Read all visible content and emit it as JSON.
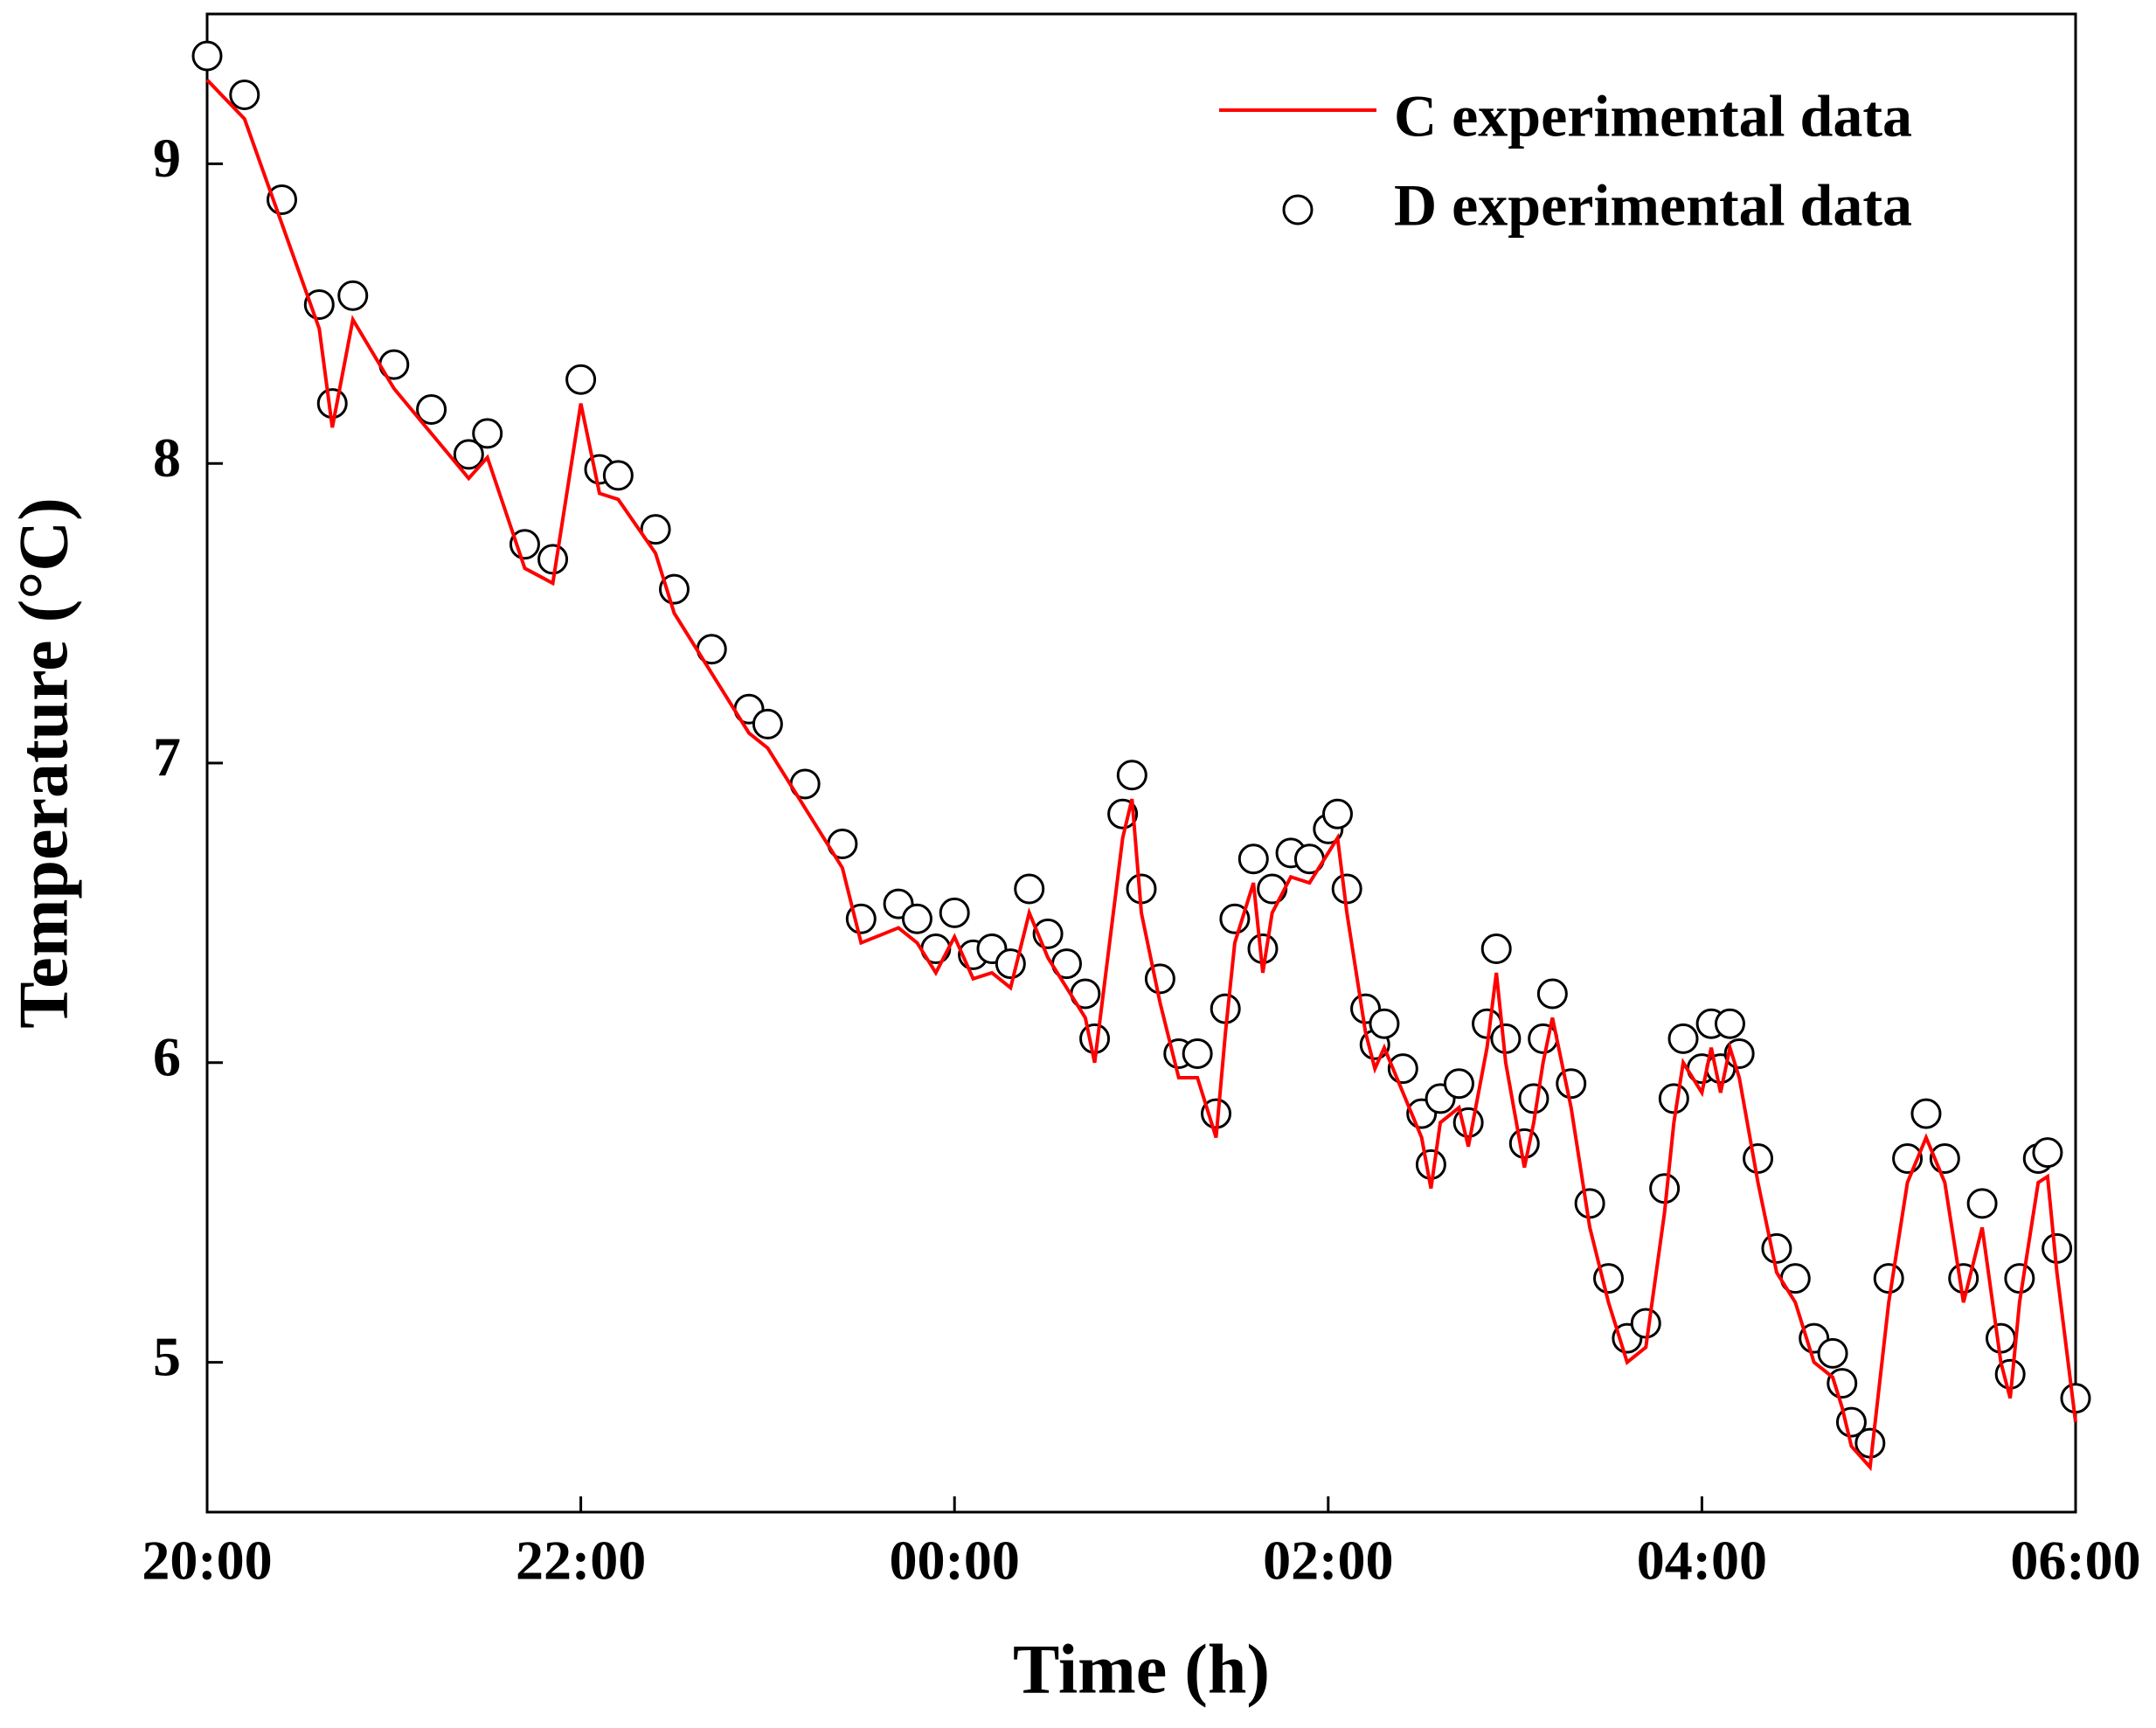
{
  "chart_data": {
    "type": "line",
    "xlabel": "Time (h)",
    "ylabel": "Temperature (°C)",
    "xlim": [
      0,
      10
    ],
    "xticks": [
      {
        "value": 0,
        "label": "20:00"
      },
      {
        "value": 2,
        "label": "22:00"
      },
      {
        "value": 4,
        "label": "00:00"
      },
      {
        "value": 6,
        "label": "02:00"
      },
      {
        "value": 8,
        "label": "04:00"
      },
      {
        "value": 10,
        "label": "06:00"
      }
    ],
    "ylim": [
      4.5,
      9.5
    ],
    "yticks": [
      5,
      6,
      7,
      8,
      9
    ],
    "grid": false,
    "legend": "upper right",
    "series": [
      {
        "name": "C experimental data",
        "color": "#ff0000",
        "type": "line",
        "x": [
          0,
          0.2,
          0.4,
          0.6,
          0.67,
          0.78,
          1.0,
          1.2,
          1.4,
          1.5,
          1.7,
          1.85,
          2.0,
          2.1,
          2.2,
          2.4,
          2.5,
          2.7,
          2.9,
          3.0,
          3.2,
          3.4,
          3.5,
          3.7,
          3.8,
          3.9,
          4.0,
          4.1,
          4.2,
          4.3,
          4.4,
          4.5,
          4.6,
          4.7,
          4.75,
          4.9,
          4.95,
          5.0,
          5.1,
          5.2,
          5.3,
          5.4,
          5.45,
          5.5,
          5.6,
          5.65,
          5.7,
          5.8,
          5.9,
          6.0,
          6.05,
          6.1,
          6.2,
          6.25,
          6.3,
          6.4,
          6.5,
          6.55,
          6.6,
          6.7,
          6.75,
          6.85,
          6.9,
          6.95,
          7.05,
          7.1,
          7.15,
          7.2,
          7.3,
          7.4,
          7.5,
          7.6,
          7.7,
          7.8,
          7.85,
          7.9,
          8.0,
          8.05,
          8.1,
          8.15,
          8.2,
          8.3,
          8.4,
          8.5,
          8.6,
          8.7,
          8.75,
          8.8,
          8.9,
          9.0,
          9.1,
          9.2,
          9.3,
          9.4,
          9.5,
          9.6,
          9.65,
          9.7,
          9.8,
          9.85,
          9.9,
          10.0
        ],
        "values": [
          9.28,
          9.15,
          8.8,
          8.45,
          8.12,
          8.48,
          8.25,
          8.1,
          7.95,
          8.02,
          7.65,
          7.6,
          8.2,
          7.9,
          7.88,
          7.7,
          7.5,
          7.3,
          7.1,
          7.05,
          6.85,
          6.65,
          6.4,
          6.45,
          6.4,
          6.3,
          6.42,
          6.28,
          6.3,
          6.25,
          6.5,
          6.35,
          6.25,
          6.15,
          6.0,
          6.75,
          6.88,
          6.5,
          6.2,
          5.95,
          5.95,
          5.75,
          6.1,
          6.4,
          6.6,
          6.3,
          6.5,
          6.62,
          6.6,
          6.7,
          6.75,
          6.5,
          6.1,
          5.98,
          6.05,
          5.9,
          5.75,
          5.58,
          5.8,
          5.85,
          5.72,
          6.05,
          6.3,
          6.0,
          5.65,
          5.8,
          6.0,
          6.15,
          5.85,
          5.45,
          5.2,
          5.0,
          5.05,
          5.5,
          5.8,
          6.0,
          5.9,
          6.05,
          5.9,
          6.05,
          5.95,
          5.6,
          5.3,
          5.2,
          5.0,
          4.95,
          4.85,
          4.72,
          4.65,
          5.2,
          5.6,
          5.75,
          5.6,
          5.2,
          5.45,
          5.0,
          4.88,
          5.2,
          5.6,
          5.62,
          5.3,
          4.8
        ]
      },
      {
        "name": "D experimental data",
        "color": "#000000",
        "type": "scatter",
        "x": [
          0,
          0.2,
          0.4,
          0.6,
          0.67,
          0.78,
          1.0,
          1.2,
          1.4,
          1.5,
          1.7,
          1.85,
          2.0,
          2.1,
          2.2,
          2.4,
          2.5,
          2.7,
          2.9,
          3.0,
          3.2,
          3.4,
          3.5,
          3.7,
          3.8,
          3.9,
          4.0,
          4.1,
          4.2,
          4.3,
          4.4,
          4.5,
          4.6,
          4.7,
          4.75,
          4.9,
          4.95,
          5.0,
          5.1,
          5.2,
          5.3,
          5.4,
          5.45,
          5.5,
          5.6,
          5.65,
          5.7,
          5.8,
          5.9,
          6.0,
          6.05,
          6.1,
          6.2,
          6.25,
          6.3,
          6.4,
          6.5,
          6.55,
          6.6,
          6.7,
          6.75,
          6.85,
          6.9,
          6.95,
          7.05,
          7.1,
          7.15,
          7.2,
          7.3,
          7.4,
          7.5,
          7.6,
          7.7,
          7.8,
          7.85,
          7.9,
          8.0,
          8.05,
          8.1,
          8.15,
          8.2,
          8.3,
          8.4,
          8.5,
          8.6,
          8.7,
          8.75,
          8.8,
          8.9,
          9.0,
          9.1,
          9.2,
          9.3,
          9.4,
          9.5,
          9.6,
          9.65,
          9.7,
          9.8,
          9.85,
          9.9,
          10.0
        ],
        "values": [
          9.36,
          9.23,
          8.88,
          8.53,
          8.2,
          8.56,
          8.33,
          8.18,
          8.03,
          8.1,
          7.73,
          7.68,
          8.28,
          7.98,
          7.96,
          7.78,
          7.58,
          7.38,
          7.18,
          7.13,
          6.93,
          6.73,
          6.48,
          6.53,
          6.48,
          6.38,
          6.5,
          6.36,
          6.38,
          6.33,
          6.58,
          6.43,
          6.33,
          6.23,
          6.08,
          6.83,
          6.96,
          6.58,
          6.28,
          6.03,
          6.03,
          5.83,
          6.18,
          6.48,
          6.68,
          6.38,
          6.58,
          6.7,
          6.68,
          6.78,
          6.83,
          6.58,
          6.18,
          6.06,
          6.13,
          5.98,
          5.83,
          5.66,
          5.88,
          5.93,
          5.8,
          6.13,
          6.38,
          6.08,
          5.73,
          5.88,
          6.08,
          6.23,
          5.93,
          5.53,
          5.28,
          5.08,
          5.13,
          5.58,
          5.88,
          6.08,
          5.98,
          6.13,
          5.98,
          6.13,
          6.03,
          5.68,
          5.38,
          5.28,
          5.08,
          5.03,
          4.93,
          4.8,
          4.73,
          5.28,
          5.68,
          5.83,
          5.68,
          5.28,
          5.53,
          5.08,
          4.96,
          5.28,
          5.68,
          5.7,
          5.38,
          4.88
        ]
      }
    ]
  }
}
